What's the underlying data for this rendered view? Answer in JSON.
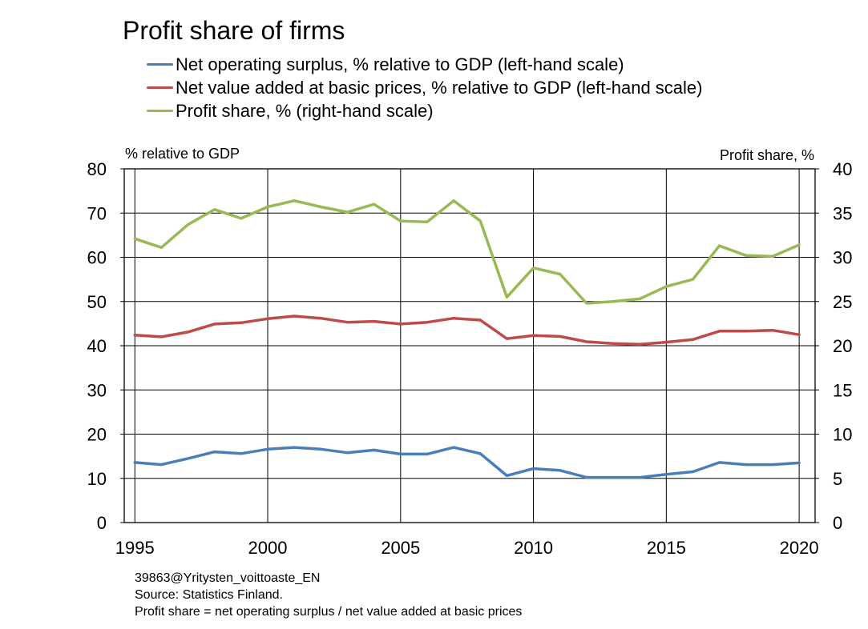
{
  "title": "Profit share of firms",
  "legend": [
    {
      "label": "Net operating surplus, % relative to GDP (left-hand scale)",
      "color": "#4a7ebb"
    },
    {
      "label": "Net value added at basic prices, % relative to GDP (left-hand scale)",
      "color": "#be4b48"
    },
    {
      "label": "Profit share, % (right-hand scale)",
      "color": "#98b954"
    }
  ],
  "footnotes": {
    "code": "39863@Yritysten_voittoaste_EN",
    "source": "Source: Statistics Finland.",
    "definition": "Profit share = net operating surplus / net value added at basic prices"
  },
  "chart_data": {
    "type": "line",
    "title": "Profit share of firms",
    "left_axis_label": "% relative to GDP",
    "right_axis_label": "Profit share,  %",
    "x": [
      1995,
      1996,
      1997,
      1998,
      1999,
      2000,
      2001,
      2002,
      2003,
      2004,
      2005,
      2006,
      2007,
      2008,
      2009,
      2010,
      2011,
      2012,
      2013,
      2014,
      2015,
      2016,
      2017,
      2018,
      2019,
      2020
    ],
    "x_ticks": [
      "1995",
      "2000",
      "2005",
      "2010",
      "2015",
      "2020"
    ],
    "xlim": [
      1994.6,
      2020.6
    ],
    "ylim_left": [
      0,
      80
    ],
    "ylim_right": [
      0,
      40
    ],
    "y_ticks_left": [
      "0",
      "10",
      "20",
      "30",
      "40",
      "50",
      "60",
      "70",
      "80"
    ],
    "y_ticks_right": [
      "0",
      "5",
      "10",
      "15",
      "20",
      "25",
      "30",
      "35",
      "40"
    ],
    "grid": true,
    "series": [
      {
        "name": "Net operating surplus, % relative to GDP (left-hand scale)",
        "axis": "left",
        "color": "#4a7ebb",
        "values": [
          13.6,
          13.1,
          14.5,
          16.0,
          15.6,
          16.6,
          17.0,
          16.6,
          15.8,
          16.4,
          15.5,
          15.5,
          17.0,
          15.6,
          10.6,
          12.2,
          11.8,
          10.2,
          10.2,
          10.2,
          10.9,
          11.5,
          13.6,
          13.1,
          13.1,
          13.5
        ]
      },
      {
        "name": "Net value added at basic prices, % relative to GDP (left-hand scale)",
        "axis": "left",
        "color": "#be4b48",
        "values": [
          42.4,
          42.0,
          43.1,
          44.9,
          45.2,
          46.1,
          46.7,
          46.2,
          45.3,
          45.5,
          44.9,
          45.3,
          46.2,
          45.8,
          41.6,
          42.3,
          42.1,
          40.9,
          40.5,
          40.3,
          40.8,
          41.4,
          43.3,
          43.3,
          43.5,
          42.5
        ]
      },
      {
        "name": "Profit share, % (right-hand scale)",
        "axis": "right",
        "color": "#98b954",
        "values": [
          32.1,
          31.1,
          33.7,
          35.4,
          34.4,
          35.7,
          36.4,
          35.7,
          35.1,
          36.0,
          34.1,
          34.0,
          36.4,
          34.1,
          25.5,
          28.8,
          28.1,
          24.8,
          25.0,
          25.3,
          26.7,
          27.5,
          31.3,
          30.2,
          30.1,
          31.4
        ]
      }
    ]
  }
}
